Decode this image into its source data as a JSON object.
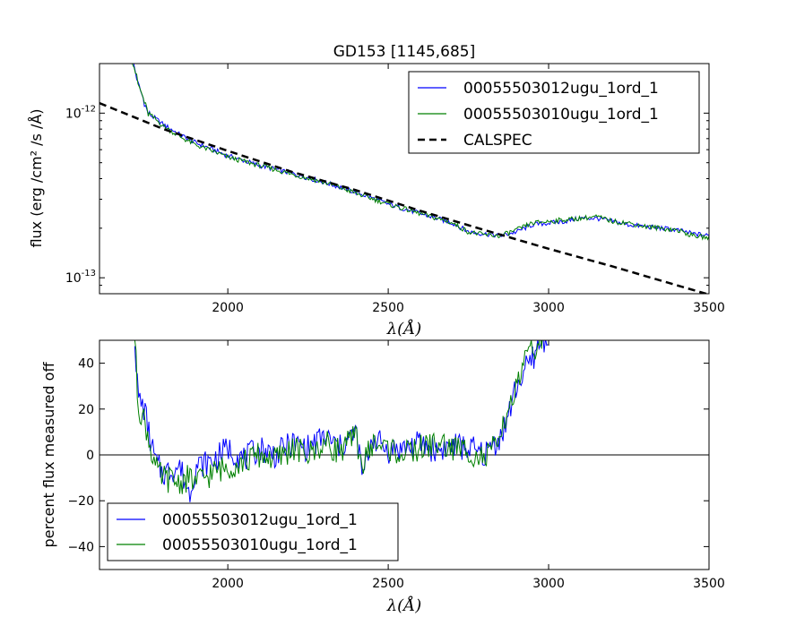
{
  "chart_data": [
    {
      "type": "line",
      "title": "GD153 [1145,685]",
      "xlabel": "λ(Å)",
      "ylabel": "flux (erg /cm² /s /Å)",
      "xlim": [
        1600,
        3500
      ],
      "ylim": [
        8e-14,
        2e-12
      ],
      "yscale": "log",
      "xticks": [
        2000,
        2500,
        3000,
        3500
      ],
      "xtick_labels": [
        "2000",
        "2500",
        "3000",
        "3500"
      ],
      "ytick_labels": [
        {
          "value": 1e-12,
          "base": "10",
          "exp": "-12"
        },
        {
          "value": 1e-13,
          "base": "10",
          "exp": "-13"
        }
      ],
      "legend_position": "upper right",
      "series": [
        {
          "name": "00055503012ugu_1ord_1",
          "color": "#0000ff",
          "x": [
            1700,
            1720,
            1750,
            1800,
            1850,
            1900,
            2000,
            2100,
            2200,
            2300,
            2400,
            2500,
            2600,
            2700,
            2750,
            2800,
            2850,
            2900,
            2950,
            3000,
            3050,
            3100,
            3150,
            3200,
            3250,
            3300,
            3350,
            3400,
            3450,
            3500
          ],
          "y": [
            2.2e-12,
            1.5e-12,
            1e-12,
            8.5e-13,
            7.4e-13,
            6.6e-13,
            5.5e-13,
            4.8e-13,
            4.3e-13,
            3.8e-13,
            3.3e-13,
            2.8e-13,
            2.45e-13,
            2.15e-13,
            1.9e-13,
            1.85e-13,
            1.8e-13,
            1.9e-13,
            2.1e-13,
            2.15e-13,
            2.2e-13,
            2.3e-13,
            2.3e-13,
            2.2e-13,
            2.1e-13,
            2.05e-13,
            2e-13,
            1.95e-13,
            1.85e-13,
            1.8e-13
          ]
        },
        {
          "name": "00055503010ugu_1ord_1",
          "color": "#008000",
          "x": [
            1700,
            1720,
            1750,
            1800,
            1850,
            1900,
            2000,
            2100,
            2200,
            2300,
            2400,
            2500,
            2600,
            2700,
            2750,
            2800,
            2850,
            2900,
            2950,
            3000,
            3050,
            3100,
            3150,
            3200,
            3250,
            3300,
            3350,
            3400,
            3450,
            3500
          ],
          "y": [
            2.2e-12,
            1.5e-12,
            1e-12,
            8.3e-13,
            7.2e-13,
            6.4e-13,
            5.4e-13,
            4.8e-13,
            4.25e-13,
            3.8e-13,
            3.25e-13,
            2.8e-13,
            2.45e-13,
            2.15e-13,
            1.9e-13,
            1.82e-13,
            1.8e-13,
            1.95e-13,
            2.15e-13,
            2.2e-13,
            2.25e-13,
            2.3e-13,
            2.35e-13,
            2.2e-13,
            2.15e-13,
            2.05e-13,
            2e-13,
            1.95e-13,
            1.8e-13,
            1.75e-13
          ]
        },
        {
          "name": "CALSPEC",
          "color": "#000000",
          "dash": true,
          "x": [
            1600,
            1800,
            2000,
            2200,
            2400,
            2600,
            2800,
            3000,
            3200,
            3400,
            3500
          ],
          "y": [
            1.15e-12,
            8e-13,
            5.9e-13,
            4.4e-13,
            3.4e-13,
            2.55e-13,
            1.95e-13,
            1.5e-13,
            1.17e-13,
            9e-14,
            7.9e-14
          ]
        }
      ]
    },
    {
      "type": "line",
      "title": "",
      "xlabel": "λ(Å)",
      "ylabel": "percent flux measured off",
      "xlim": [
        1600,
        3500
      ],
      "ylim": [
        -50,
        50
      ],
      "xticks": [
        2000,
        2500,
        3000,
        3500
      ],
      "xtick_labels": [
        "2000",
        "2500",
        "3000",
        "3500"
      ],
      "yticks": [
        -40,
        -20,
        0,
        20,
        40
      ],
      "ytick_labels": [
        "−40",
        "−20",
        "0",
        "20",
        "40"
      ],
      "hline": 0,
      "legend_position": "lower left",
      "series": [
        {
          "name": "00055503012ugu_1ord_1",
          "color": "#0000ff",
          "x": [
            1710,
            1720,
            1740,
            1760,
            1780,
            1800,
            1850,
            1880,
            1900,
            1950,
            2000,
            2050,
            2100,
            2150,
            2200,
            2250,
            2300,
            2350,
            2400,
            2420,
            2450,
            2500,
            2550,
            2600,
            2650,
            2700,
            2750,
            2800,
            2830,
            2850,
            2870,
            2900,
            2920,
            2950,
            2970,
            3000
          ],
          "y": [
            52,
            25,
            20,
            5,
            -5,
            -8,
            -5,
            -17,
            -5,
            -3,
            3,
            -2,
            3,
            0,
            5,
            3,
            8,
            3,
            10,
            -10,
            8,
            2,
            3,
            5,
            2,
            4,
            3,
            0,
            5,
            8,
            15,
            30,
            35,
            42,
            48,
            52
          ]
        },
        {
          "name": "00055503010ugu_1ord_1",
          "color": "#008000",
          "x": [
            1710,
            1720,
            1740,
            1760,
            1780,
            1800,
            1850,
            1880,
            1900,
            1950,
            2000,
            2050,
            2100,
            2150,
            2200,
            2250,
            2300,
            2350,
            2400,
            2420,
            2450,
            2500,
            2550,
            2600,
            2650,
            2700,
            2750,
            2800,
            2830,
            2850,
            2870,
            2900,
            2920,
            2950,
            2970,
            3000
          ],
          "y": [
            52,
            22,
            15,
            3,
            -8,
            -10,
            -12,
            -10,
            -12,
            -8,
            -5,
            -3,
            0,
            -2,
            3,
            0,
            5,
            2,
            8,
            -5,
            5,
            3,
            0,
            3,
            5,
            3,
            2,
            -2,
            3,
            5,
            20,
            28,
            40,
            45,
            50,
            52
          ]
        }
      ]
    }
  ]
}
